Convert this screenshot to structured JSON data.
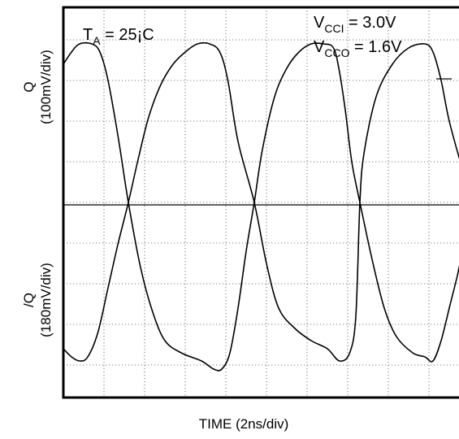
{
  "chart_data": {
    "type": "line",
    "title": "",
    "xlabel": "TIME (2ns/div)",
    "ylabel_top": {
      "name": "Q",
      "scale": "(100mV/div)"
    },
    "ylabel_bottom": {
      "name": "/Q",
      "scale": "(180mV/div)"
    },
    "xlim": [
      0,
      9.8
    ],
    "ylim": [
      -4.8,
      4.8
    ],
    "grid": true,
    "annotations": {
      "temperature": {
        "main": "T",
        "sub": "A",
        "rest": " = 25¡C"
      },
      "vcci": {
        "main": "V",
        "sub": "CCI",
        "rest": " = 3.0V"
      },
      "vcco": {
        "main": "V",
        "sub": "CCO",
        "rest": " = 1.6V"
      }
    },
    "series": [
      {
        "points": [
          [
            0,
            3.4
          ],
          [
            0.2,
            3.7
          ],
          [
            0.4,
            3.9
          ],
          [
            0.7,
            3.9
          ],
          [
            0.9,
            3.7
          ],
          [
            1.1,
            3.0
          ],
          [
            1.35,
            1.6
          ],
          [
            1.6,
            0.0
          ],
          [
            1.9,
            -1.6
          ],
          [
            2.2,
            -2.7
          ],
          [
            2.5,
            -3.4
          ],
          [
            2.9,
            -3.7
          ],
          [
            3.4,
            -3.9
          ],
          [
            3.7,
            -4.1
          ],
          [
            3.9,
            -4.1
          ],
          [
            4.1,
            -3.7
          ],
          [
            4.3,
            -2.6
          ],
          [
            4.5,
            -1.2
          ],
          [
            4.7,
            0.0
          ],
          [
            4.9,
            1.3
          ],
          [
            5.2,
            2.6
          ],
          [
            5.5,
            3.3
          ],
          [
            5.8,
            3.7
          ],
          [
            6.1,
            3.9
          ],
          [
            6.4,
            3.9
          ],
          [
            6.65,
            3.8
          ],
          [
            6.8,
            3.2
          ],
          [
            6.95,
            2.2
          ],
          [
            7.1,
            1.0
          ],
          [
            7.3,
            0.0
          ],
          [
            7.6,
            -1.4
          ],
          [
            7.9,
            -2.6
          ],
          [
            8.2,
            -3.3
          ],
          [
            8.6,
            -3.7
          ],
          [
            8.9,
            -3.8
          ],
          [
            9.1,
            -3.9
          ],
          [
            9.3,
            -3.4
          ],
          [
            9.5,
            -2.6
          ],
          [
            9.7,
            -1.8
          ],
          [
            9.8,
            -1.3
          ]
        ]
      },
      {
        "points": [
          [
            0,
            -3.6
          ],
          [
            0.2,
            -3.8
          ],
          [
            0.4,
            -3.9
          ],
          [
            0.6,
            -3.8
          ],
          [
            0.85,
            -3.2
          ],
          [
            1.1,
            -2.1
          ],
          [
            1.35,
            -1.0
          ],
          [
            1.6,
            0.0
          ],
          [
            1.85,
            1.1
          ],
          [
            2.1,
            2.1
          ],
          [
            2.4,
            2.9
          ],
          [
            2.7,
            3.4
          ],
          [
            3.0,
            3.7
          ],
          [
            3.3,
            3.9
          ],
          [
            3.6,
            3.9
          ],
          [
            3.85,
            3.7
          ],
          [
            4.05,
            3.0
          ],
          [
            4.3,
            1.5
          ],
          [
            4.7,
            0.0
          ],
          [
            5.0,
            -1.5
          ],
          [
            5.3,
            -2.6
          ],
          [
            5.7,
            -3.1
          ],
          [
            6.1,
            -3.4
          ],
          [
            6.5,
            -3.6
          ],
          [
            6.8,
            -3.9
          ],
          [
            7.05,
            -3.7
          ],
          [
            7.2,
            -2.8
          ],
          [
            7.3,
            0.0
          ],
          [
            7.4,
            1.2
          ],
          [
            7.7,
            2.6
          ],
          [
            8.1,
            3.4
          ],
          [
            8.5,
            3.8
          ],
          [
            8.9,
            3.9
          ],
          [
            9.1,
            3.7
          ],
          [
            9.3,
            3.0
          ],
          [
            9.5,
            2.0
          ],
          [
            9.8,
            0.9
          ]
        ]
      }
    ]
  }
}
